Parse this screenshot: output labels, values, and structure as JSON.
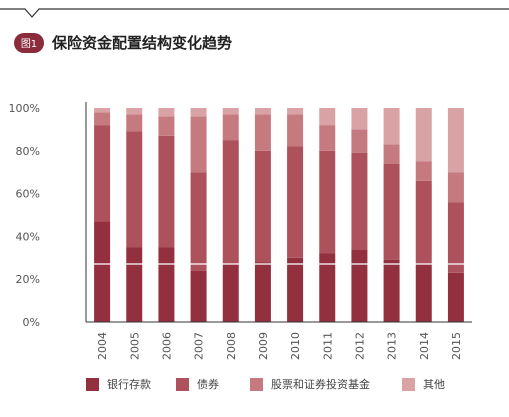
{
  "header": {
    "badge": "图1",
    "title": "保险资金配置结构变化趋势"
  },
  "chart_data": {
    "type": "bar",
    "stacked": true,
    "categories": [
      "2004",
      "2005",
      "2006",
      "2007",
      "2008",
      "2009",
      "2010",
      "2011",
      "2012",
      "2013",
      "2014",
      "2015"
    ],
    "series": [
      {
        "name": "银行存款",
        "color": "#93303f",
        "values": [
          47,
          35,
          35,
          24,
          27,
          28,
          30,
          32,
          34,
          29,
          27,
          23
        ]
      },
      {
        "name": "债券",
        "color": "#ad525d",
        "values": [
          45,
          54,
          52,
          46,
          58,
          52,
          52,
          48,
          45,
          45,
          39,
          33
        ]
      },
      {
        "name": "股票和证券投资基金",
        "color": "#c57a80",
        "values": [
          6,
          8,
          9,
          26,
          12,
          17,
          15,
          12,
          11,
          9,
          9,
          14
        ]
      },
      {
        "name": "其他",
        "color": "#d9a3a6",
        "values": [
          2,
          3,
          4,
          4,
          3,
          3,
          3,
          8,
          10,
          17,
          25,
          30
        ]
      }
    ],
    "yticks": [
      "0%",
      "20%",
      "40%",
      "60%",
      "80%",
      "100%"
    ],
    "ylim": [
      0,
      100
    ],
    "grid": false,
    "legend_position": "bottom"
  }
}
